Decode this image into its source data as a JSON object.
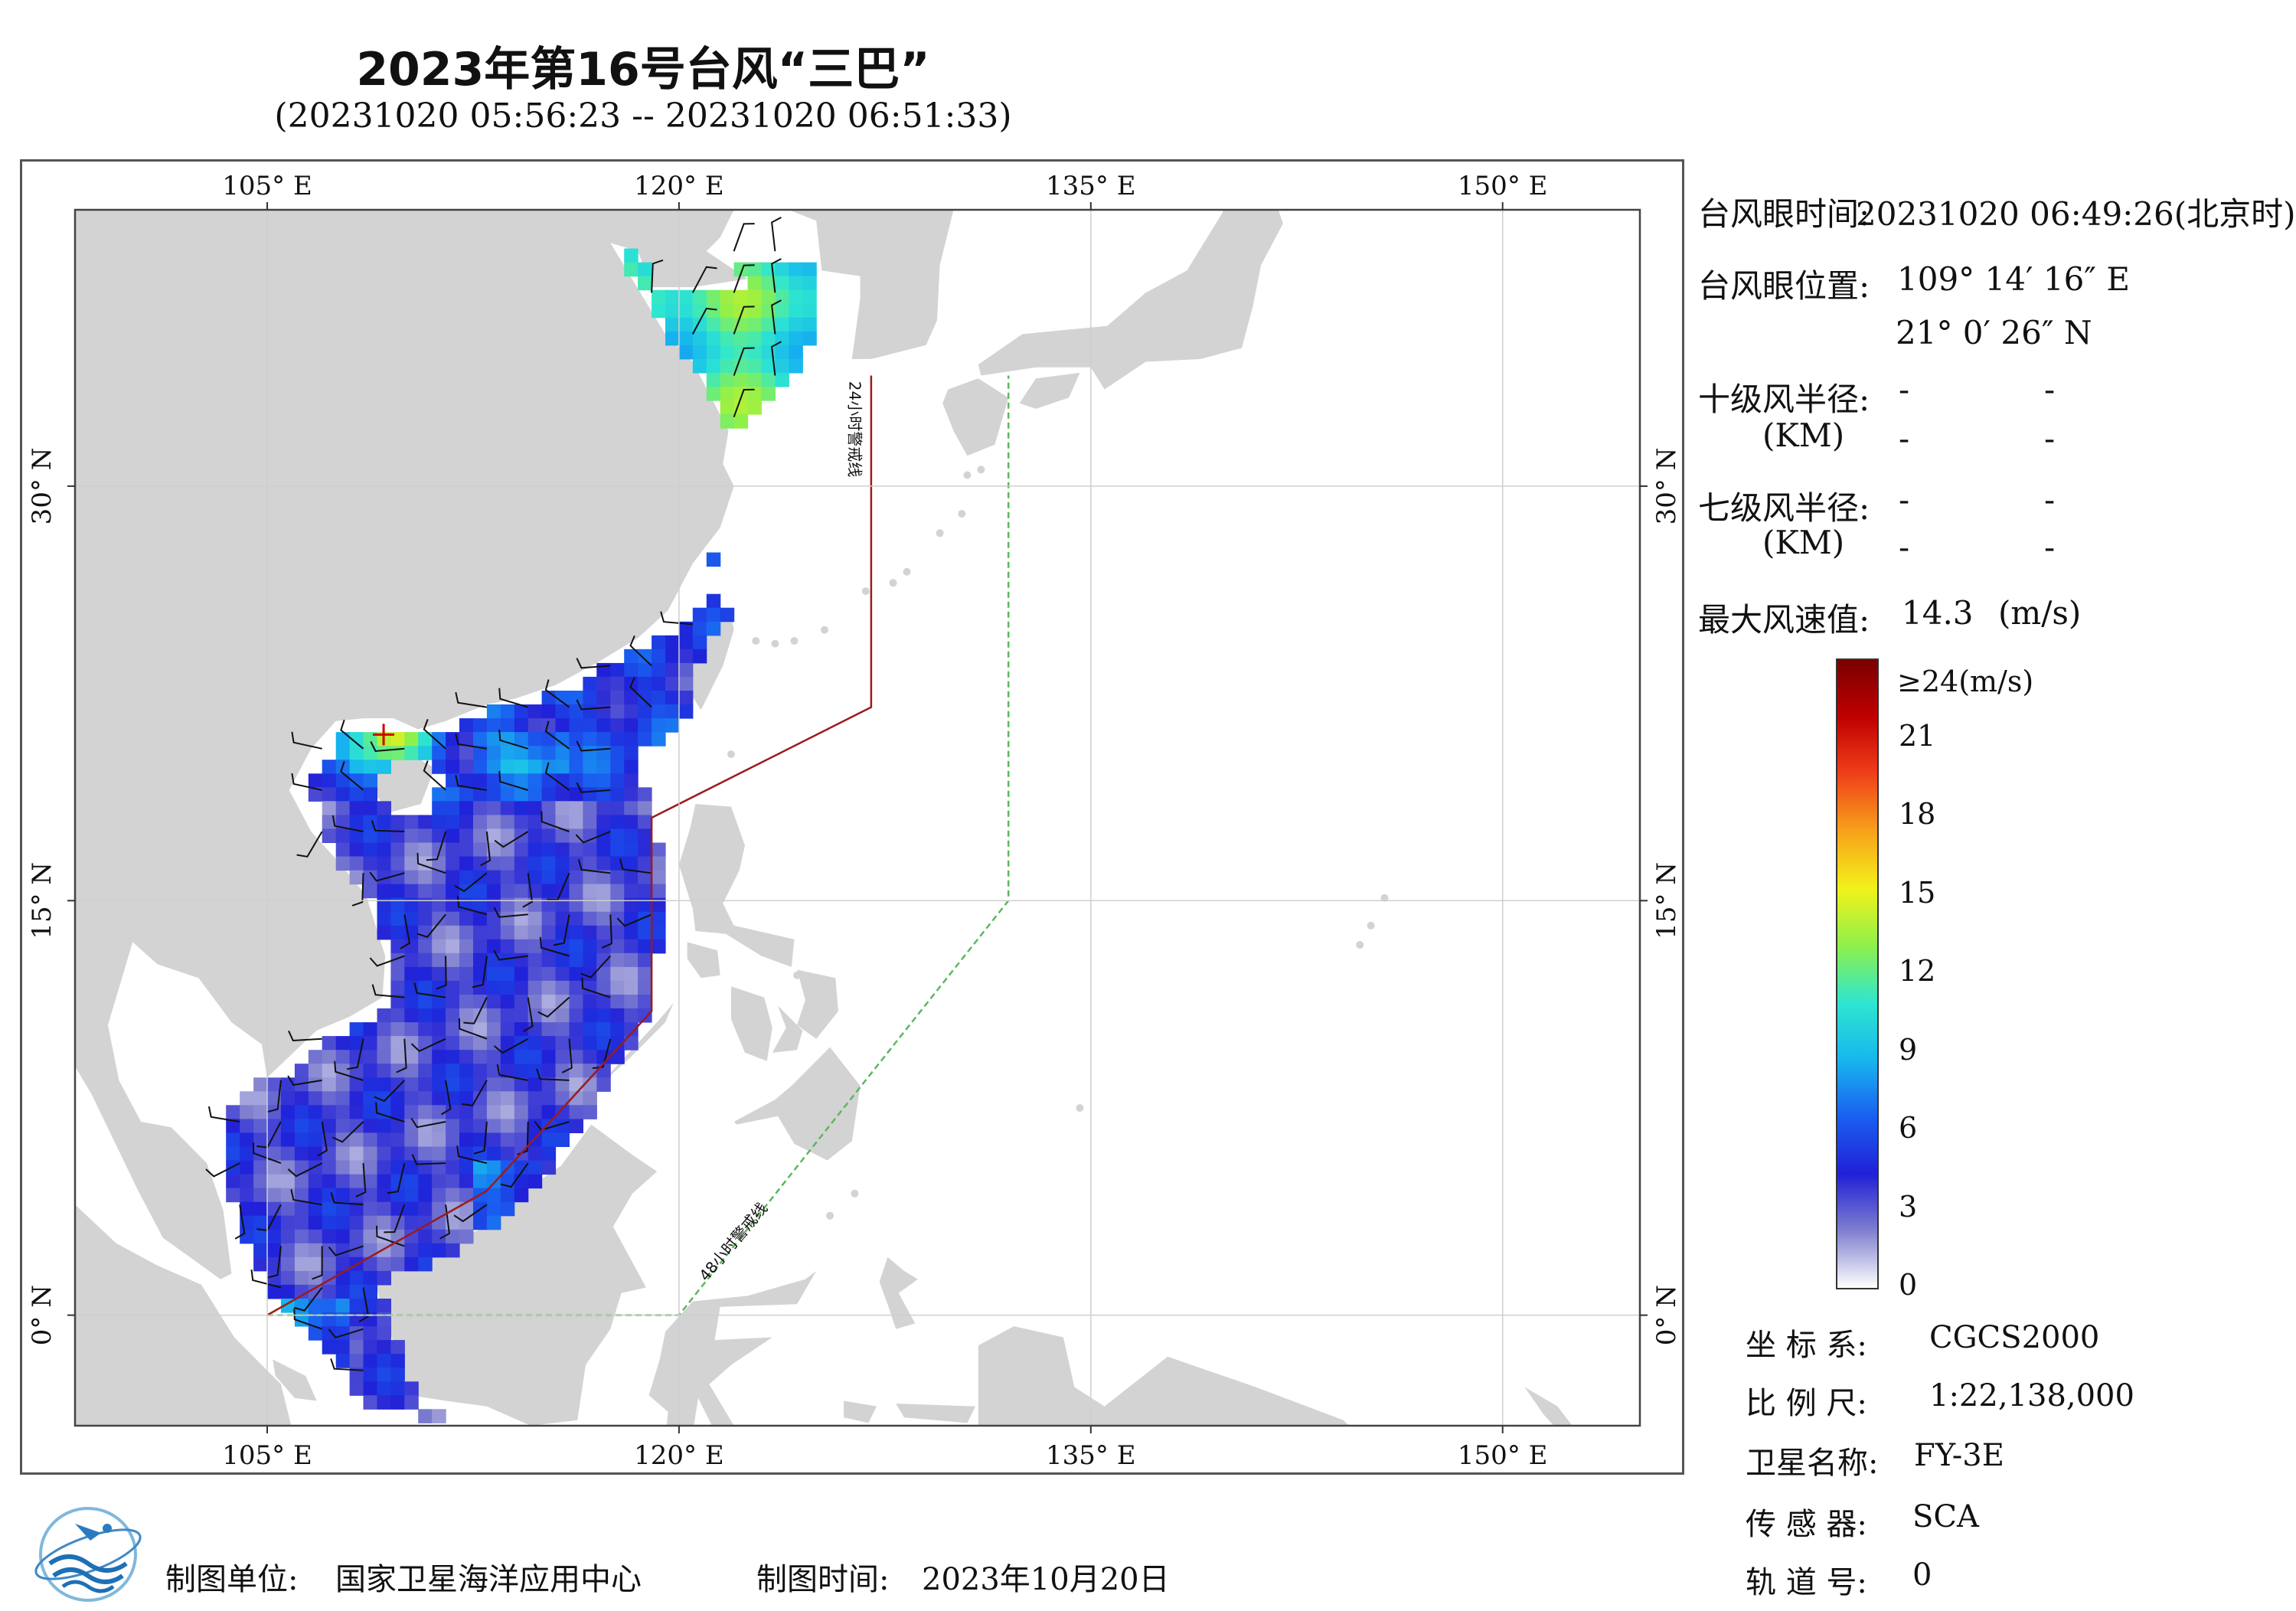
{
  "title": "2023年第16号台风“三巴”",
  "subtitle": "(20231020 05:56:23 -- 20231020 06:51:33)",
  "map": {
    "lon_range": [
      98,
      155
    ],
    "lat_range": [
      -4,
      40
    ],
    "lon_ticks": [
      {
        "value": 105,
        "label": "105° E"
      },
      {
        "value": 120,
        "label": "120° E"
      },
      {
        "value": 135,
        "label": "135° E"
      },
      {
        "value": 150,
        "label": "150° E"
      }
    ],
    "lat_ticks": [
      {
        "value": 30,
        "label": "30° N"
      },
      {
        "value": 15,
        "label": "15° N"
      },
      {
        "value": 0,
        "label": "0° N"
      }
    ],
    "warning_line_24h": {
      "label": "24小时警戒线",
      "color": "#9b1b1b",
      "points": [
        [
          105,
          0
        ],
        [
          113,
          4.5
        ],
        [
          119,
          11
        ],
        [
          119,
          18
        ],
        [
          127,
          22
        ],
        [
          127,
          34
        ]
      ]
    },
    "warning_line_48h": {
      "label": "48小时警戒线",
      "color": "#5cb85c",
      "points": [
        [
          105,
          0
        ],
        [
          120,
          0
        ],
        [
          132,
          15
        ],
        [
          132,
          34
        ]
      ]
    },
    "typhoon_eye": {
      "lon": 109.24,
      "lat": 21.01
    },
    "land_color": "#d3d3d3",
    "sea_color": "#ffffff"
  },
  "info": {
    "eye_time_label": "台风眼时间:",
    "eye_time_value": "20231020 06:49:26(北京时)",
    "eye_pos_label": "台风眼位置:",
    "eye_lon": "109° 14′ 16″ E",
    "eye_lat": "21° 0′ 26″ N",
    "r10_label": "十级风半径:",
    "r7_label": "七级风半径:",
    "km_label": "(KM)",
    "dash": "-",
    "max_wind_label": "最大风速值:",
    "max_wind_value": "14.3",
    "max_wind_unit": "(m/s)"
  },
  "colorbar": {
    "top_label": "≥24(m/s)",
    "ticks": [
      "21",
      "18",
      "15",
      "12",
      "9",
      "6",
      "3",
      "0"
    ],
    "max": 24,
    "stops": [
      "#ffffff",
      "#7f7fcf",
      "#2020d8",
      "#1a5ff0",
      "#17b7ee",
      "#2ee6d0",
      "#8ff04a",
      "#f2f21a",
      "#f7a21a",
      "#f0401a",
      "#c00000",
      "#7a0000"
    ]
  },
  "meta": {
    "coord_label": "坐 标 系:",
    "coord_value": "CGCS2000",
    "scale_label": "比 例 尺:",
    "scale_value": "1:22,138,000",
    "sat_label": "卫星名称:",
    "sat_value": "FY-3E",
    "sensor_label": "传 感 器:",
    "sensor_value": "SCA",
    "orbit_label": "轨 道 号:",
    "orbit_value": "0"
  },
  "footer": {
    "unit_label": "制图单位:",
    "unit_value": "国家卫星海洋应用中心",
    "time_label": "制图时间:",
    "time_value": "2023年10月20日"
  }
}
